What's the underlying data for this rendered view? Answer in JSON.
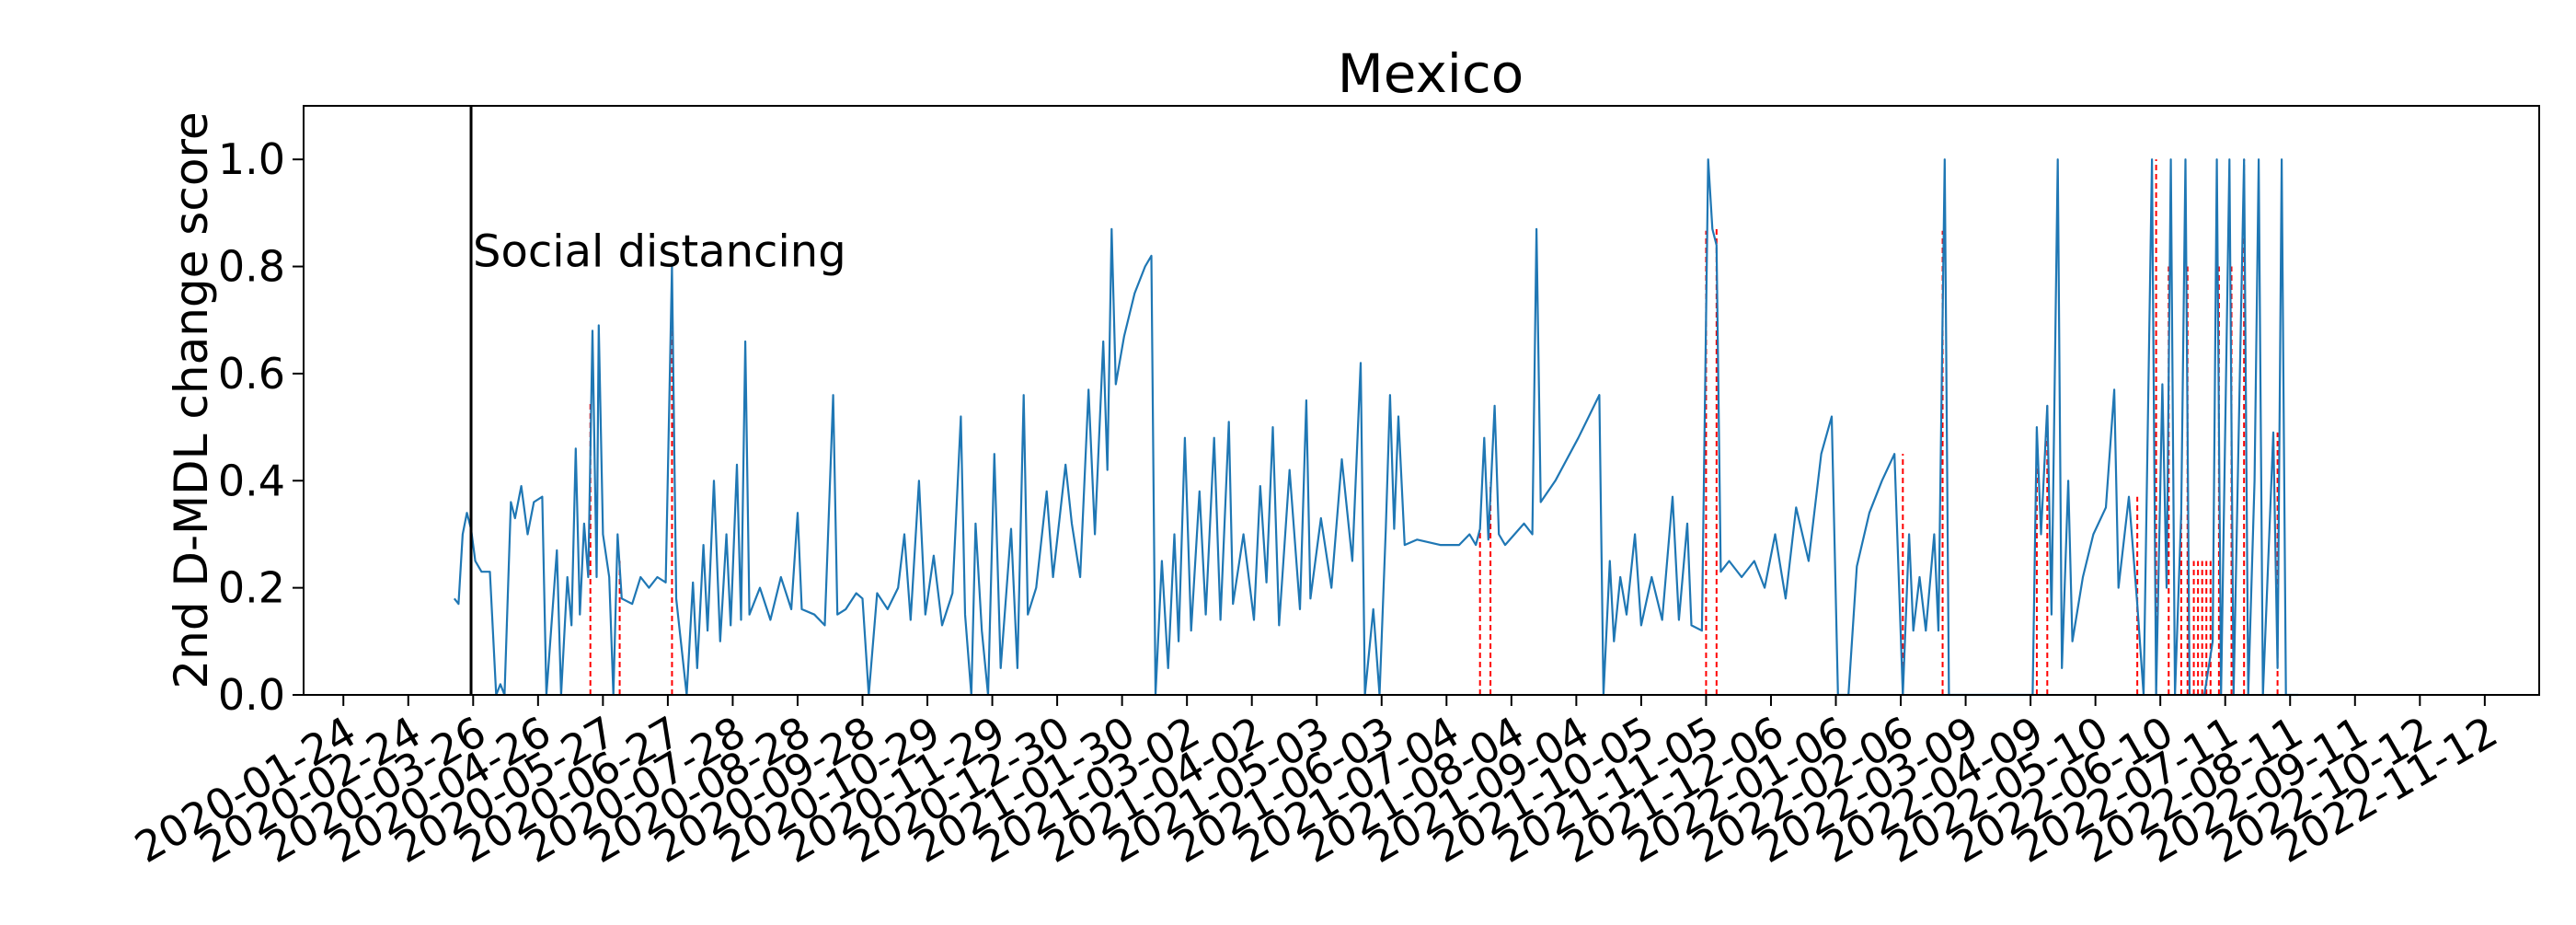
{
  "chart_data": {
    "type": "line",
    "title": "Mexico",
    "xlabel": "",
    "ylabel": "2nd D-MDL change score",
    "ylim": [
      0.0,
      1.1
    ],
    "xlim": [
      "2020-01-05",
      "2022-12-08"
    ],
    "grid": false,
    "legend": "none",
    "y_ticks": [
      "0.0",
      "0.2",
      "0.4",
      "0.6",
      "0.8",
      "1.0"
    ],
    "x_ticks": [
      "2020-01-24",
      "2020-02-24",
      "2020-03-26",
      "2020-04-26",
      "2020-05-27",
      "2020-06-27",
      "2020-07-28",
      "2020-08-28",
      "2020-09-28",
      "2020-10-29",
      "2020-11-29",
      "2020-12-30",
      "2021-01-30",
      "2021-03-02",
      "2021-04-02",
      "2021-05-03",
      "2021-06-03",
      "2021-07-04",
      "2021-08-04",
      "2021-09-04",
      "2021-10-05",
      "2021-11-05",
      "2021-12-06",
      "2022-01-06",
      "2022-02-06",
      "2022-03-09",
      "2022-04-09",
      "2022-05-10",
      "2022-06-10",
      "2022-07-11",
      "2022-08-11",
      "2022-09-11",
      "2022-10-12",
      "2022-11-12"
    ],
    "series": [
      {
        "color": "#1f77b4",
        "points": [
          [
            "2020-03-17",
            0.18
          ],
          [
            "2020-03-19",
            0.17
          ],
          [
            "2020-03-21",
            0.3
          ],
          [
            "2020-03-23",
            0.34
          ],
          [
            "2020-03-25",
            0.31
          ],
          [
            "2020-03-27",
            0.25
          ],
          [
            "2020-03-30",
            0.23
          ],
          [
            "2020-04-03",
            0.23
          ],
          [
            "2020-04-06",
            0.0
          ],
          [
            "2020-04-08",
            0.02
          ],
          [
            "2020-04-10",
            0.0
          ],
          [
            "2020-04-13",
            0.36
          ],
          [
            "2020-04-15",
            0.33
          ],
          [
            "2020-04-18",
            0.39
          ],
          [
            "2020-04-21",
            0.3
          ],
          [
            "2020-04-24",
            0.36
          ],
          [
            "2020-04-28",
            0.37
          ],
          [
            "2020-04-30",
            0.0
          ],
          [
            "2020-05-05",
            0.27
          ],
          [
            "2020-05-07",
            0.0
          ],
          [
            "2020-05-10",
            0.22
          ],
          [
            "2020-05-12",
            0.13
          ],
          [
            "2020-05-14",
            0.46
          ],
          [
            "2020-05-16",
            0.15
          ],
          [
            "2020-05-18",
            0.32
          ],
          [
            "2020-05-20",
            0.22
          ],
          [
            "2020-05-22",
            0.68
          ],
          [
            "2020-05-24",
            0.22
          ],
          [
            "2020-05-25",
            0.69
          ],
          [
            "2020-05-27",
            0.3
          ],
          [
            "2020-05-30",
            0.22
          ],
          [
            "2020-06-01",
            0.0
          ],
          [
            "2020-06-03",
            0.3
          ],
          [
            "2020-06-05",
            0.18
          ],
          [
            "2020-06-10",
            0.17
          ],
          [
            "2020-06-14",
            0.22
          ],
          [
            "2020-06-18",
            0.2
          ],
          [
            "2020-06-22",
            0.22
          ],
          [
            "2020-06-26",
            0.21
          ],
          [
            "2020-06-29",
            0.8
          ],
          [
            "2020-07-01",
            0.18
          ],
          [
            "2020-07-06",
            0.0
          ],
          [
            "2020-07-09",
            0.21
          ],
          [
            "2020-07-11",
            0.05
          ],
          [
            "2020-07-14",
            0.28
          ],
          [
            "2020-07-16",
            0.12
          ],
          [
            "2020-07-19",
            0.4
          ],
          [
            "2020-07-22",
            0.1
          ],
          [
            "2020-07-25",
            0.3
          ],
          [
            "2020-07-27",
            0.13
          ],
          [
            "2020-07-30",
            0.43
          ],
          [
            "2020-08-01",
            0.14
          ],
          [
            "2020-08-03",
            0.66
          ],
          [
            "2020-08-05",
            0.15
          ],
          [
            "2020-08-10",
            0.2
          ],
          [
            "2020-08-15",
            0.14
          ],
          [
            "2020-08-20",
            0.22
          ],
          [
            "2020-08-25",
            0.16
          ],
          [
            "2020-08-28",
            0.34
          ],
          [
            "2020-08-30",
            0.16
          ],
          [
            "2020-09-05",
            0.15
          ],
          [
            "2020-09-10",
            0.13
          ],
          [
            "2020-09-14",
            0.56
          ],
          [
            "2020-09-16",
            0.15
          ],
          [
            "2020-09-20",
            0.16
          ],
          [
            "2020-09-25",
            0.19
          ],
          [
            "2020-09-28",
            0.18
          ],
          [
            "2020-10-01",
            0.0
          ],
          [
            "2020-10-05",
            0.19
          ],
          [
            "2020-10-10",
            0.16
          ],
          [
            "2020-10-15",
            0.2
          ],
          [
            "2020-10-18",
            0.3
          ],
          [
            "2020-10-21",
            0.14
          ],
          [
            "2020-10-25",
            0.4
          ],
          [
            "2020-10-28",
            0.15
          ],
          [
            "2020-11-01",
            0.26
          ],
          [
            "2020-11-05",
            0.13
          ],
          [
            "2020-11-10",
            0.19
          ],
          [
            "2020-11-14",
            0.52
          ],
          [
            "2020-11-16",
            0.15
          ],
          [
            "2020-11-19",
            0.0
          ],
          [
            "2020-11-21",
            0.32
          ],
          [
            "2020-11-24",
            0.12
          ],
          [
            "2020-11-27",
            0.0
          ],
          [
            "2020-11-30",
            0.45
          ],
          [
            "2020-12-03",
            0.05
          ],
          [
            "2020-12-08",
            0.31
          ],
          [
            "2020-12-11",
            0.05
          ],
          [
            "2020-12-14",
            0.56
          ],
          [
            "2020-12-16",
            0.15
          ],
          [
            "2020-12-20",
            0.2
          ],
          [
            "2020-12-25",
            0.38
          ],
          [
            "2020-12-28",
            0.22
          ],
          [
            "2021-01-03",
            0.43
          ],
          [
            "2021-01-06",
            0.32
          ],
          [
            "2021-01-10",
            0.22
          ],
          [
            "2021-01-14",
            0.57
          ],
          [
            "2021-01-17",
            0.3
          ],
          [
            "2021-01-21",
            0.66
          ],
          [
            "2021-01-23",
            0.42
          ],
          [
            "2021-01-25",
            0.87
          ],
          [
            "2021-01-27",
            0.58
          ],
          [
            "2021-01-31",
            0.67
          ],
          [
            "2021-02-05",
            0.75
          ],
          [
            "2021-02-10",
            0.8
          ],
          [
            "2021-02-13",
            0.82
          ],
          [
            "2021-02-15",
            0.0
          ],
          [
            "2021-02-18",
            0.25
          ],
          [
            "2021-02-21",
            0.05
          ],
          [
            "2021-02-24",
            0.3
          ],
          [
            "2021-02-26",
            0.1
          ],
          [
            "2021-03-01",
            0.48
          ],
          [
            "2021-03-04",
            0.12
          ],
          [
            "2021-03-08",
            0.38
          ],
          [
            "2021-03-11",
            0.15
          ],
          [
            "2021-03-15",
            0.48
          ],
          [
            "2021-03-18",
            0.14
          ],
          [
            "2021-03-22",
            0.51
          ],
          [
            "2021-03-24",
            0.17
          ],
          [
            "2021-03-29",
            0.3
          ],
          [
            "2021-04-03",
            0.14
          ],
          [
            "2021-04-06",
            0.39
          ],
          [
            "2021-04-09",
            0.21
          ],
          [
            "2021-04-12",
            0.5
          ],
          [
            "2021-04-15",
            0.13
          ],
          [
            "2021-04-20",
            0.42
          ],
          [
            "2021-04-25",
            0.16
          ],
          [
            "2021-04-28",
            0.55
          ],
          [
            "2021-04-30",
            0.18
          ],
          [
            "2021-05-05",
            0.33
          ],
          [
            "2021-05-10",
            0.2
          ],
          [
            "2021-05-15",
            0.44
          ],
          [
            "2021-05-20",
            0.25
          ],
          [
            "2021-05-24",
            0.62
          ],
          [
            "2021-05-26",
            0.0
          ],
          [
            "2021-05-30",
            0.16
          ],
          [
            "2021-06-02",
            0.0
          ],
          [
            "2021-06-05",
            0.31
          ],
          [
            "2021-06-07",
            0.56
          ],
          [
            "2021-06-09",
            0.31
          ],
          [
            "2021-06-11",
            0.52
          ],
          [
            "2021-06-14",
            0.28
          ],
          [
            "2021-06-20",
            0.29
          ],
          [
            "2021-07-01",
            0.28
          ],
          [
            "2021-07-10",
            0.28
          ],
          [
            "2021-07-15",
            0.3
          ],
          [
            "2021-07-18",
            0.28
          ],
          [
            "2021-07-20",
            0.31
          ],
          [
            "2021-07-22",
            0.48
          ],
          [
            "2021-07-24",
            0.29
          ],
          [
            "2021-07-27",
            0.54
          ],
          [
            "2021-07-29",
            0.3
          ],
          [
            "2021-08-01",
            0.28
          ],
          [
            "2021-08-10",
            0.32
          ],
          [
            "2021-08-14",
            0.3
          ],
          [
            "2021-08-16",
            0.87
          ],
          [
            "2021-08-18",
            0.36
          ],
          [
            "2021-08-25",
            0.4
          ],
          [
            "2021-09-05",
            0.48
          ],
          [
            "2021-09-10",
            0.52
          ],
          [
            "2021-09-15",
            0.56
          ],
          [
            "2021-09-17",
            0.0
          ],
          [
            "2021-09-20",
            0.25
          ],
          [
            "2021-09-22",
            0.1
          ],
          [
            "2021-09-25",
            0.22
          ],
          [
            "2021-09-28",
            0.15
          ],
          [
            "2021-10-02",
            0.3
          ],
          [
            "2021-10-05",
            0.13
          ],
          [
            "2021-10-10",
            0.22
          ],
          [
            "2021-10-15",
            0.14
          ],
          [
            "2021-10-20",
            0.37
          ],
          [
            "2021-10-23",
            0.14
          ],
          [
            "2021-10-27",
            0.32
          ],
          [
            "2021-10-29",
            0.13
          ],
          [
            "2021-11-03",
            0.12
          ],
          [
            "2021-11-06",
            1.0
          ],
          [
            "2021-11-08",
            0.87
          ],
          [
            "2021-11-10",
            0.84
          ],
          [
            "2021-11-12",
            0.23
          ],
          [
            "2021-11-16",
            0.25
          ],
          [
            "2021-11-22",
            0.22
          ],
          [
            "2021-11-28",
            0.25
          ],
          [
            "2021-12-03",
            0.2
          ],
          [
            "2021-12-08",
            0.3
          ],
          [
            "2021-12-13",
            0.18
          ],
          [
            "2021-12-18",
            0.35
          ],
          [
            "2021-12-24",
            0.25
          ],
          [
            "2021-12-30",
            0.45
          ],
          [
            "2022-01-04",
            0.52
          ],
          [
            "2022-01-07",
            0.0
          ],
          [
            "2022-01-12",
            0.0
          ],
          [
            "2022-01-16",
            0.24
          ],
          [
            "2022-01-22",
            0.34
          ],
          [
            "2022-01-28",
            0.4
          ],
          [
            "2022-02-03",
            0.45
          ],
          [
            "2022-02-07",
            0.0
          ],
          [
            "2022-02-10",
            0.3
          ],
          [
            "2022-02-12",
            0.12
          ],
          [
            "2022-02-15",
            0.22
          ],
          [
            "2022-02-18",
            0.12
          ],
          [
            "2022-02-22",
            0.3
          ],
          [
            "2022-02-24",
            0.12
          ],
          [
            "2022-02-27",
            1.0
          ],
          [
            "2022-03-01",
            0.0
          ],
          [
            "2022-03-15",
            0.0
          ],
          [
            "2022-04-10",
            0.0
          ],
          [
            "2022-04-12",
            0.5
          ],
          [
            "2022-04-14",
            0.3
          ],
          [
            "2022-04-17",
            0.54
          ],
          [
            "2022-04-19",
            0.15
          ],
          [
            "2022-04-22",
            1.0
          ],
          [
            "2022-04-24",
            0.05
          ],
          [
            "2022-04-27",
            0.4
          ],
          [
            "2022-04-29",
            0.1
          ],
          [
            "2022-05-04",
            0.22
          ],
          [
            "2022-05-09",
            0.3
          ],
          [
            "2022-05-15",
            0.35
          ],
          [
            "2022-05-19",
            0.57
          ],
          [
            "2022-05-21",
            0.2
          ],
          [
            "2022-05-26",
            0.37
          ],
          [
            "2022-05-30",
            0.17
          ],
          [
            "2022-06-02",
            0.0
          ],
          [
            "2022-06-06",
            1.0
          ],
          [
            "2022-06-08",
            0.0
          ],
          [
            "2022-06-11",
            0.58
          ],
          [
            "2022-06-13",
            0.2
          ],
          [
            "2022-06-15",
            1.0
          ],
          [
            "2022-06-17",
            0.0
          ],
          [
            "2022-06-20",
            0.34
          ],
          [
            "2022-06-22",
            1.0
          ],
          [
            "2022-06-24",
            0.0
          ],
          [
            "2022-07-01",
            0.0
          ],
          [
            "2022-07-05",
            0.1
          ],
          [
            "2022-07-07",
            1.0
          ],
          [
            "2022-07-09",
            0.0
          ],
          [
            "2022-07-13",
            1.0
          ],
          [
            "2022-07-15",
            0.0
          ],
          [
            "2022-07-20",
            1.0
          ],
          [
            "2022-07-22",
            0.0
          ],
          [
            "2022-07-25",
            0.4
          ],
          [
            "2022-07-27",
            1.0
          ],
          [
            "2022-07-29",
            0.0
          ],
          [
            "2022-08-03",
            0.49
          ],
          [
            "2022-08-05",
            0.05
          ],
          [
            "2022-08-07",
            1.0
          ],
          [
            "2022-08-09",
            0.0
          ],
          [
            "2022-08-15",
            0.0
          ]
        ]
      }
    ],
    "vertical_markers": [
      {
        "date": "2020-03-25",
        "label": "Social distancing",
        "color": "#000000"
      }
    ],
    "change_points": [
      "2020-05-21",
      "2020-06-04",
      "2020-06-29",
      "2021-07-20",
      "2021-07-25",
      "2021-11-05",
      "2021-11-10",
      "2022-02-07",
      "2022-02-26",
      "2022-04-12",
      "2022-04-17",
      "2022-05-30",
      "2022-06-08",
      "2022-06-14",
      "2022-06-20",
      "2022-06-23",
      "2022-06-26",
      "2022-06-28",
      "2022-06-30",
      "2022-07-02",
      "2022-07-04",
      "2022-07-08",
      "2022-07-14",
      "2022-07-20",
      "2022-08-05"
    ],
    "change_point_color": "#ff0000"
  }
}
